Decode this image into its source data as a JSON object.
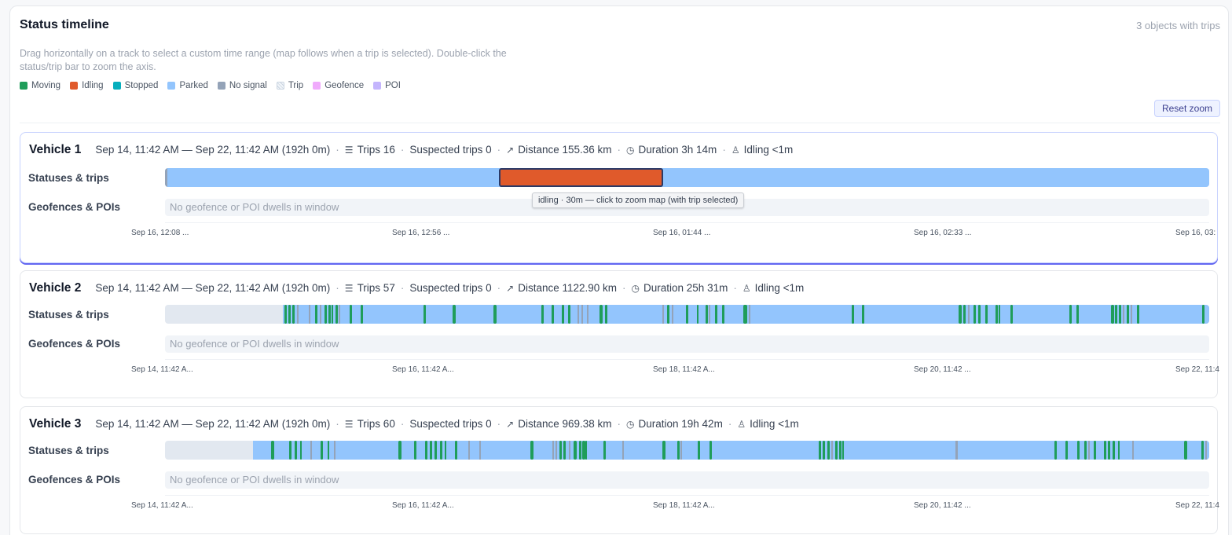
{
  "header": {
    "title": "Status timeline",
    "count": "3 objects with trips",
    "description": "Drag horizontally on a track to select a custom time range (map follows when a trip is selected). Double-click the status/trip bar to zoom the axis.",
    "reset_label": "Reset zoom"
  },
  "legend": [
    {
      "label": "Moving",
      "color": "#1f9d5a"
    },
    {
      "label": "Idling",
      "color": "#e05a2b"
    },
    {
      "label": "Stopped",
      "color": "#06aebd"
    },
    {
      "label": "Parked",
      "color": "#93c5fd"
    },
    {
      "label": "No signal",
      "color": "#94a3b8"
    },
    {
      "label": "Trip",
      "color": "pattern"
    },
    {
      "label": "Geofence",
      "color": "#f0abfc"
    },
    {
      "label": "POI",
      "color": "#c4b5fd"
    }
  ],
  "labels": {
    "statuses_row": "Statuses & trips",
    "geo_row": "Geofences & POIs",
    "geo_empty": "No geofence or POI dwells in window"
  },
  "tooltip": "idling · 30m — click to zoom map (with trip selected)",
  "vehicles": [
    {
      "name": "Vehicle 1",
      "range": "Sep 14, 11:42 AM — Sep 22, 11:42 AM (192h 0m)",
      "trips": "Trips 16",
      "suspected": "Suspected trips 0",
      "distance": "Distance 155.36 km",
      "duration": "Duration 3h 14m",
      "idling": "Idling <1m",
      "ticks": [
        "Sep 16, 12:08 ...",
        "Sep 16, 12:56 ...",
        "Sep 16, 01:44 ...",
        "Sep 16, 02:33 ...",
        "Sep 16, 03:"
      ]
    },
    {
      "name": "Vehicle 2",
      "range": "Sep 14, 11:42 AM — Sep 22, 11:42 AM (192h 0m)",
      "trips": "Trips 57",
      "suspected": "Suspected trips 0",
      "distance": "Distance 1122.90 km",
      "duration": "Duration 25h 31m",
      "idling": "Idling <1m",
      "ticks": [
        "Sep 14, 11:42 A...",
        "Sep 16, 11:42 A...",
        "Sep 18, 11:42 A...",
        "Sep 20, 11:42 ...",
        "Sep 22, 11:4"
      ]
    },
    {
      "name": "Vehicle 3",
      "range": "Sep 14, 11:42 AM — Sep 22, 11:42 AM (192h 0m)",
      "trips": "Trips 60",
      "suspected": "Suspected trips 0",
      "distance": "Distance 969.38 km",
      "duration": "Duration 19h 42m",
      "idling": "Idling <1m",
      "ticks": [
        "Sep 14, 11:42 A...",
        "Sep 16, 11:42 A...",
        "Sep 18, 11:42 A...",
        "Sep 20, 11:42 ...",
        "Sep 22, 11:4"
      ]
    }
  ]
}
